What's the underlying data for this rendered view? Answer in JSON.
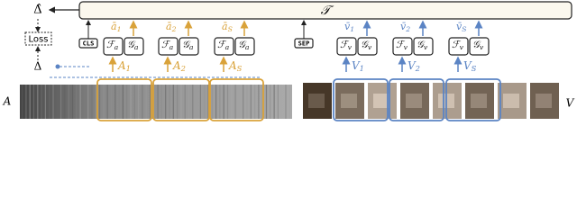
{
  "transformer": {
    "label": "𝒯"
  },
  "output": {
    "label": "Δ̂"
  },
  "loss": {
    "label": "Loss"
  },
  "target": {
    "label": "Δ"
  },
  "tokens": {
    "cls": "CLS",
    "sep": "SEP"
  },
  "audio": {
    "label": "A",
    "encoders": [
      {
        "f": {
          "base": "ℱ",
          "sub": "a"
        },
        "g": {
          "base": "𝒢",
          "sub": "a"
        },
        "output": {
          "base": "ā",
          "sub": "1"
        },
        "input": {
          "base": "A",
          "sub": "1"
        }
      },
      {
        "f": {
          "base": "ℱ",
          "sub": "a"
        },
        "g": {
          "base": "𝒢",
          "sub": "a"
        },
        "output": {
          "base": "ā",
          "sub": "2"
        },
        "input": {
          "base": "A",
          "sub": "2"
        }
      },
      {
        "f": {
          "base": "ℱ",
          "sub": "a"
        },
        "g": {
          "base": "𝒢",
          "sub": "a"
        },
        "output": {
          "base": "ā",
          "sub": "S"
        },
        "input": {
          "base": "A",
          "sub": "S"
        }
      }
    ]
  },
  "video": {
    "label": "V",
    "encoders": [
      {
        "f": {
          "base": "ℱ",
          "sub": "v"
        },
        "g": {
          "base": "𝒢",
          "sub": "v"
        },
        "output": {
          "base": "v̄",
          "sub": "1"
        },
        "input": {
          "base": "V",
          "sub": "1"
        }
      },
      {
        "f": {
          "base": "ℱ",
          "sub": "v"
        },
        "g": {
          "base": "𝒢",
          "sub": "v"
        },
        "output": {
          "base": "v̄",
          "sub": "2"
        },
        "input": {
          "base": "V",
          "sub": "2"
        }
      },
      {
        "f": {
          "base": "ℱ",
          "sub": "v"
        },
        "g": {
          "base": "𝒢",
          "sub": "v"
        },
        "output": {
          "base": "v̄",
          "sub": "S"
        },
        "input": {
          "base": "V",
          "sub": "S"
        }
      }
    ]
  }
}
